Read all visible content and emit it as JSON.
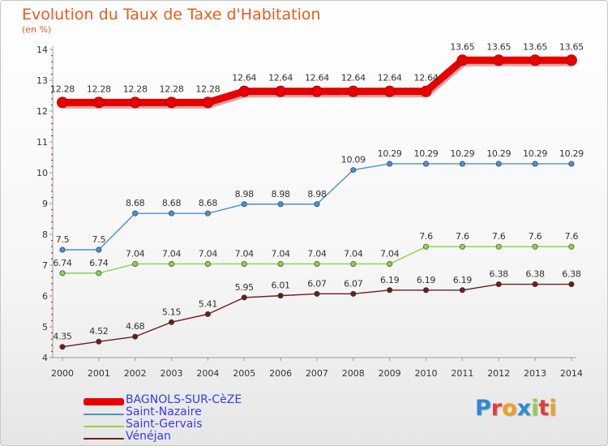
{
  "chart_data": {
    "type": "line",
    "title": "Evolution du Taux de Taxe d'Habitation",
    "subtitle": "(en %)",
    "x": [
      "2000",
      "2001",
      "2002",
      "2003",
      "2004",
      "2005",
      "2006",
      "2007",
      "2008",
      "2009",
      "2010",
      "2011",
      "2012",
      "2013",
      "2014"
    ],
    "y_ticks": [
      "4",
      "5",
      "6",
      "7",
      "8",
      "9",
      "10",
      "11",
      "12",
      "13",
      "14"
    ],
    "ylim": [
      4,
      14
    ],
    "grid": false,
    "legend_position": "bottom-left",
    "series": [
      {
        "name": "BAGNOLS-SUR-CèZE",
        "color": "#e80000",
        "values": [
          12.28,
          12.28,
          12.28,
          12.28,
          12.28,
          12.64,
          12.64,
          12.64,
          12.64,
          12.64,
          12.64,
          13.65,
          13.65,
          13.65,
          13.65
        ]
      },
      {
        "name": "Saint-Nazaire",
        "color": "#4a90d0",
        "values": [
          7.5,
          7.5,
          8.68,
          8.68,
          8.68,
          8.98,
          8.98,
          8.98,
          10.09,
          10.29,
          10.29,
          10.29,
          10.29,
          10.29,
          10.29
        ]
      },
      {
        "name": "Saint-Gervais",
        "color": "#8ed04a",
        "values": [
          6.74,
          6.74,
          7.04,
          7.04,
          7.04,
          7.04,
          7.04,
          7.04,
          7.04,
          7.04,
          7.6,
          7.6,
          7.6,
          7.6,
          7.6
        ]
      },
      {
        "name": "Vénéjan",
        "color": "#6a1e1e",
        "values": [
          4.35,
          4.52,
          4.68,
          5.15,
          5.41,
          5.95,
          6.01,
          6.07,
          6.07,
          6.19,
          6.19,
          6.19,
          6.38,
          6.38,
          6.38
        ]
      }
    ],
    "data_labels": [
      [
        "12.28",
        "12.28",
        "12.28",
        "12.28",
        "12.28",
        "12.64",
        "12.64",
        "12.64",
        "12.64",
        "12.64",
        "12.64",
        "13.65",
        "13.65",
        "13.65",
        "13.65"
      ],
      [
        "7.5",
        "7.5",
        "8.68",
        "8.68",
        "8.68",
        "8.98",
        "8.98",
        "8.98",
        "10.09",
        "10.29",
        "10.29",
        "10.29",
        "10.29",
        "10.29",
        "10.29"
      ],
      [
        "6.74",
        "6.74",
        "7.04",
        "7.04",
        "7.04",
        "7.04",
        "7.04",
        "7.04",
        "7.04",
        "7.04",
        "7.6",
        "7.6",
        "7.6",
        "7.6",
        "7.6"
      ],
      [
        "4.35",
        "4.52",
        "4.68",
        "5.15",
        "5.41",
        "5.95",
        "6.01",
        "6.07",
        "6.07",
        "6.19",
        "6.19",
        "6.19",
        "6.38",
        "6.38",
        "6.38"
      ]
    ]
  },
  "logo": {
    "text": "Proxiti",
    "letters": [
      "P",
      "r",
      "o",
      "x",
      "i",
      "t",
      "i"
    ],
    "letter_colors": [
      "#2a8ad8",
      "#e83a3a",
      "#f0a020",
      "#2a8ad8",
      "#8ed04a",
      "#e83a3a",
      "#f0a020"
    ]
  }
}
